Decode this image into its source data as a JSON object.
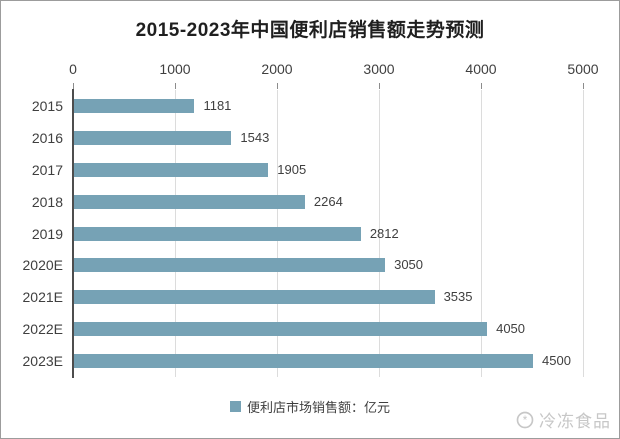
{
  "title": "2015-2023年中国便利店销售额走势预测",
  "legend": {
    "label": "便利店市场销售额：亿元"
  },
  "watermark": {
    "text": "冷冻食品",
    "icon": "snowflake-logo-icon"
  },
  "colors": {
    "bar": "#76a2b5",
    "gridline": "#dcdcdc",
    "axis": "#4d4d4d",
    "text": "#3f3f3f",
    "watermark": "#c7c7c7"
  },
  "chart_data": {
    "type": "bar",
    "orientation": "horizontal",
    "title": "2015-2023年中国便利店销售额走势预测",
    "categories": [
      "2015",
      "2016",
      "2017",
      "2018",
      "2019",
      "2020E",
      "2021E",
      "2022E",
      "2023E"
    ],
    "values": [
      1181,
      1543,
      1905,
      2264,
      2812,
      3050,
      3535,
      4050,
      4500
    ],
    "xlabel": "",
    "ylabel": "",
    "xlim": [
      0,
      5000
    ],
    "xticks": [
      0,
      1000,
      2000,
      3000,
      4000,
      5000
    ],
    "grid": true,
    "data_labels": true,
    "legend_entries": [
      "便利店市场销售额：亿元"
    ],
    "legend_position": "bottom"
  }
}
